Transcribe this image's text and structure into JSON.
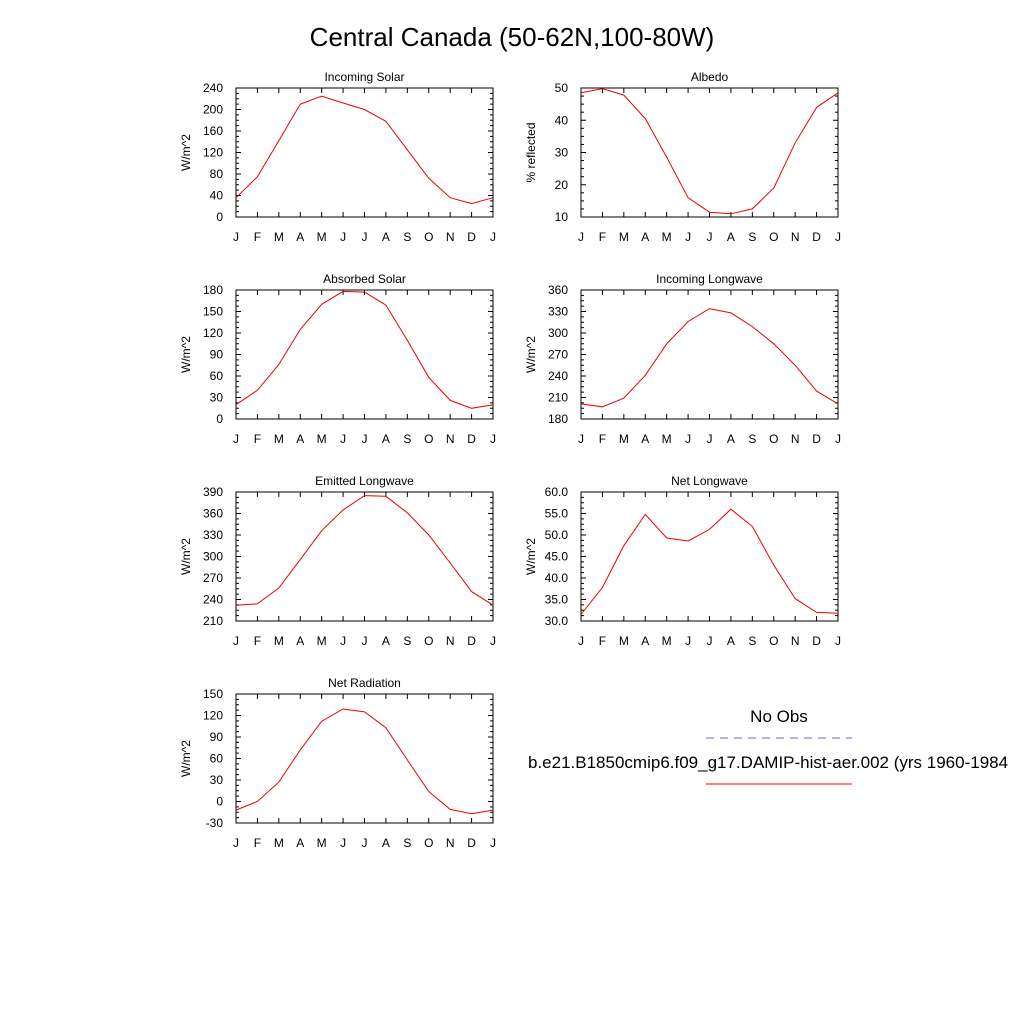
{
  "figure": {
    "title": "Central Canada (50-62N,100-80W)",
    "month_labels": [
      "J",
      "F",
      "M",
      "A",
      "M",
      "J",
      "J",
      "A",
      "S",
      "O",
      "N",
      "D",
      "J"
    ]
  },
  "legend": {
    "obs_label": "No Obs",
    "obs_color": "#6666ee",
    "model_label": "b.e21.B1850cmip6.f09_g17.DAMIP-hist-aer.002 (yrs 1960-1984",
    "model_color": "#ee0000"
  },
  "chart_data": [
    {
      "type": "line",
      "title": "Incoming Solar",
      "ylabel": "W/m^2",
      "ylim": [
        0,
        240
      ],
      "yticks": [
        "0",
        "40",
        "80",
        "120",
        "160",
        "200",
        "240"
      ],
      "x": [
        "J",
        "F",
        "M",
        "A",
        "M",
        "J",
        "J",
        "A",
        "S",
        "O",
        "N",
        "D",
        "J"
      ],
      "series": [
        {
          "values": [
            36,
            75,
            142,
            210,
            225,
            212,
            200,
            178,
            125,
            72,
            36,
            25,
            36
          ],
          "color": "#ee0000"
        }
      ]
    },
    {
      "type": "line",
      "title": "Albedo",
      "ylabel": "% reflected",
      "ylim": [
        10,
        50
      ],
      "yticks": [
        "10",
        "20",
        "30",
        "40",
        "50"
      ],
      "x": [
        "J",
        "F",
        "M",
        "A",
        "M",
        "J",
        "J",
        "A",
        "S",
        "O",
        "N",
        "D",
        "J"
      ],
      "series": [
        {
          "values": [
            48.5,
            49.8,
            47.8,
            40.5,
            28.5,
            16,
            11.5,
            11,
            12.5,
            19,
            33,
            44,
            48.5
          ],
          "color": "#ee0000"
        }
      ]
    },
    {
      "type": "line",
      "title": "Absorbed Solar",
      "ylabel": "W/m^2",
      "ylim": [
        0,
        180
      ],
      "yticks": [
        "0",
        "30",
        "60",
        "90",
        "120",
        "150",
        "180"
      ],
      "x": [
        "J",
        "F",
        "M",
        "A",
        "M",
        "J",
        "J",
        "A",
        "S",
        "O",
        "N",
        "D",
        "J"
      ],
      "series": [
        {
          "values": [
            20,
            40,
            76,
            125,
            160,
            178,
            177,
            159,
            110,
            58,
            26,
            15,
            20
          ],
          "color": "#ee0000"
        }
      ]
    },
    {
      "type": "line",
      "title": "Incoming Longwave",
      "ylabel": "W/m^2",
      "ylim": [
        180,
        360
      ],
      "yticks": [
        "180",
        "210",
        "240",
        "270",
        "300",
        "330",
        "360"
      ],
      "x": [
        "J",
        "F",
        "M",
        "A",
        "M",
        "J",
        "J",
        "A",
        "S",
        "O",
        "N",
        "D",
        "J"
      ],
      "series": [
        {
          "values": [
            201,
            197,
            209,
            241,
            285,
            316,
            334,
            328,
            309,
            285,
            255,
            219,
            201
          ],
          "color": "#ee0000"
        }
      ]
    },
    {
      "type": "line",
      "title": "Emitted Longwave",
      "ylabel": "W/m^2",
      "ylim": [
        210,
        390
      ],
      "yticks": [
        "210",
        "240",
        "270",
        "300",
        "330",
        "360",
        "390"
      ],
      "x": [
        "J",
        "F",
        "M",
        "A",
        "M",
        "J",
        "J",
        "A",
        "S",
        "O",
        "N",
        "D",
        "J"
      ],
      "series": [
        {
          "values": [
            232,
            234,
            256,
            296,
            336,
            365,
            385,
            384,
            361,
            330,
            291,
            251,
            232
          ],
          "color": "#ee0000"
        }
      ]
    },
    {
      "type": "line",
      "title": "Net Longwave",
      "ylabel": "W/m^2",
      "ylim": [
        30,
        60
      ],
      "yticks": [
        "30.0",
        "35.0",
        "40.0",
        "45.0",
        "50.0",
        "55.0",
        "60.0"
      ],
      "x": [
        "J",
        "F",
        "M",
        "A",
        "M",
        "J",
        "J",
        "A",
        "S",
        "O",
        "N",
        "D",
        "J"
      ],
      "series": [
        {
          "values": [
            31.5,
            37.8,
            47.5,
            54.8,
            49.3,
            48.6,
            51.3,
            56,
            52,
            43,
            35.2,
            32,
            31.8
          ],
          "color": "#ee0000"
        }
      ]
    },
    {
      "type": "line",
      "title": "Net Radiation",
      "ylabel": "W/m^2",
      "ylim": [
        -30,
        150
      ],
      "yticks": [
        "-30",
        "0",
        "30",
        "60",
        "90",
        "120",
        "150"
      ],
      "x": [
        "J",
        "F",
        "M",
        "A",
        "M",
        "J",
        "J",
        "A",
        "S",
        "O",
        "N",
        "D",
        "J"
      ],
      "series": [
        {
          "values": [
            -12,
            0,
            27,
            72,
            112,
            129,
            125,
            103,
            58,
            14,
            -11,
            -17,
            -12
          ],
          "color": "#ee0000"
        }
      ]
    }
  ]
}
